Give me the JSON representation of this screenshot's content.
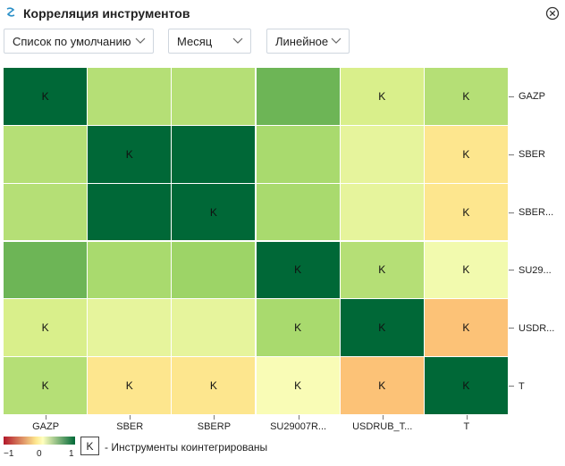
{
  "window": {
    "title": "Корреляция инструментов",
    "icon": "app-logo-icon",
    "close_icon": "close-circle-icon"
  },
  "controls": {
    "list": "Список по умолчанию",
    "period": "Месяц",
    "scale": "Линейное"
  },
  "chart_data": {
    "type": "heatmap",
    "columns": [
      "GAZP",
      "SBER",
      "SBERP",
      "SU29007R...",
      "USDRUB_T...",
      "T"
    ],
    "rows": [
      "GAZP",
      "SBER",
      "SBER...",
      "SU29...",
      "USDR...",
      "T"
    ],
    "values": [
      [
        1.0,
        0.45,
        0.45,
        0.7,
        0.3,
        0.45
      ],
      [
        0.45,
        1.0,
        1.0,
        0.5,
        0.2,
        -0.05
      ],
      [
        0.45,
        1.0,
        1.0,
        0.5,
        0.2,
        -0.05
      ],
      [
        0.7,
        0.5,
        0.55,
        1.0,
        0.45,
        0.1
      ],
      [
        0.3,
        0.2,
        0.2,
        0.5,
        1.0,
        -0.3
      ],
      [
        0.45,
        -0.05,
        -0.05,
        0.05,
        -0.3,
        1.0
      ]
    ],
    "cointegrated_marker": "K",
    "cointegrated": [
      [
        true,
        false,
        false,
        false,
        true,
        true
      ],
      [
        false,
        true,
        false,
        false,
        false,
        true
      ],
      [
        false,
        false,
        true,
        false,
        false,
        true
      ],
      [
        false,
        false,
        false,
        true,
        true,
        true
      ],
      [
        true,
        false,
        false,
        true,
        true,
        true
      ],
      [
        true,
        true,
        true,
        true,
        true,
        true
      ]
    ],
    "color_scale": {
      "min": -1,
      "mid": 0,
      "max": 1,
      "colors": [
        "#b2182b",
        "#fde68e",
        "#ffffbf",
        "#006837"
      ],
      "tick_labels": [
        "−1",
        "0",
        "1"
      ]
    }
  },
  "legend": {
    "marker": "K",
    "text": "- Инструменты коинтегрированы"
  }
}
